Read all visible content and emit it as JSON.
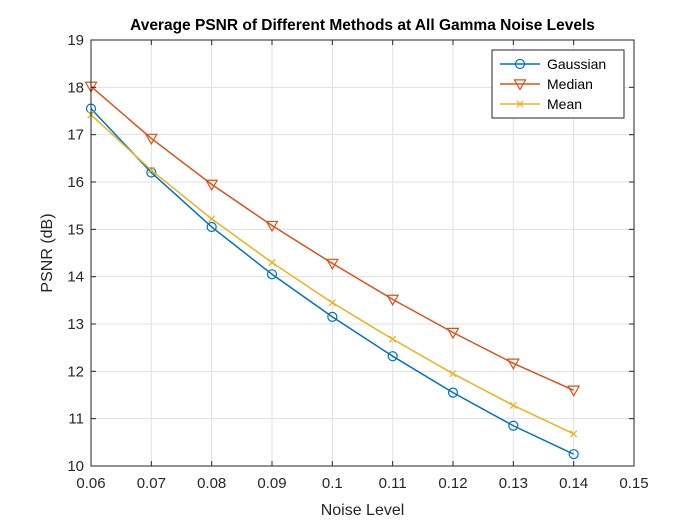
{
  "chart_data": {
    "type": "line",
    "title": "Average PSNR of Different Methods at All Gamma Noise Levels",
    "xlabel": "Noise Level",
    "ylabel": "PSNR (dB)",
    "xlim": [
      0.06,
      0.15
    ],
    "ylim": [
      10,
      19
    ],
    "x_ticks": [
      "0.06",
      "0.07",
      "0.08",
      "0.09",
      "0.1",
      "0.11",
      "0.12",
      "0.13",
      "0.14",
      "0.15"
    ],
    "y_ticks": [
      "10",
      "11",
      "12",
      "13",
      "14",
      "15",
      "16",
      "17",
      "18",
      "19"
    ],
    "grid": true,
    "legend_position": "top-right",
    "x": [
      0.06,
      0.07,
      0.08,
      0.09,
      0.1,
      0.11,
      0.12,
      0.13,
      0.14
    ],
    "series": [
      {
        "name": "Gaussian",
        "color": "#0072BD",
        "marker": "circle",
        "values": [
          17.55,
          16.2,
          15.05,
          14.05,
          13.15,
          12.32,
          11.55,
          10.85,
          10.25
        ]
      },
      {
        "name": "Median",
        "color": "#D95319",
        "marker": "triangle-down",
        "values": [
          18.02,
          16.92,
          15.95,
          15.08,
          14.28,
          13.52,
          12.82,
          12.17,
          11.6
        ]
      },
      {
        "name": "Mean",
        "color": "#EDB120",
        "marker": "x",
        "values": [
          17.42,
          16.25,
          15.22,
          14.3,
          13.45,
          12.68,
          11.95,
          11.28,
          10.68
        ]
      }
    ]
  }
}
